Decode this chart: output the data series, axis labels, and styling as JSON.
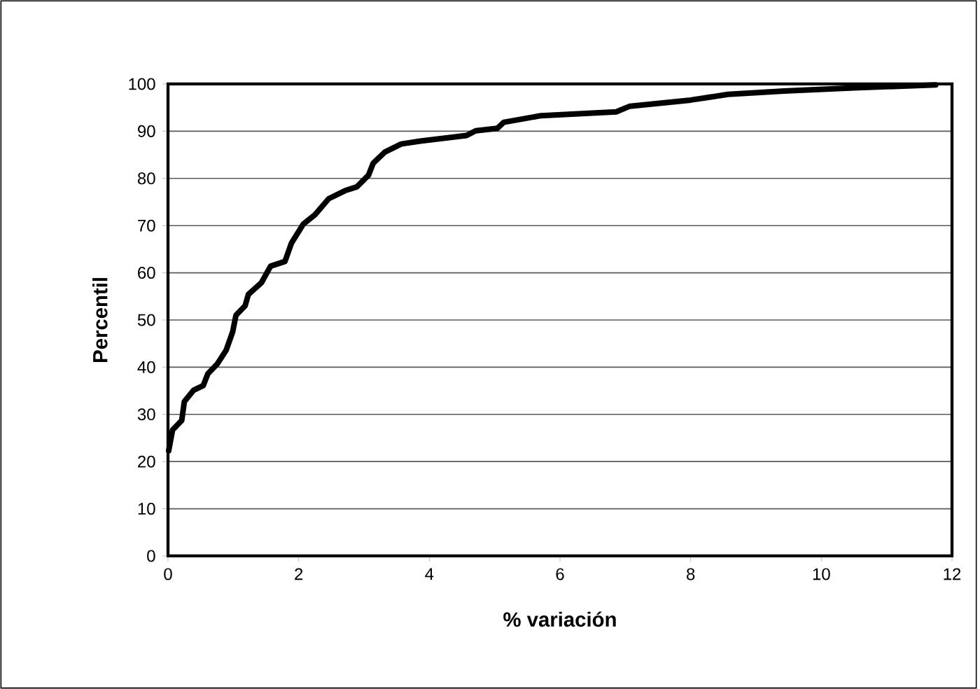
{
  "chart_data": {
    "type": "line",
    "xlabel": "% variación",
    "ylabel": "Percentil",
    "x": [
      0.01,
      0.07,
      0.21,
      0.25,
      0.39,
      0.54,
      0.61,
      0.75,
      0.89,
      0.99,
      1.04,
      1.18,
      1.23,
      1.43,
      1.57,
      1.79,
      1.89,
      2.07,
      2.25,
      2.46,
      2.71,
      2.89,
      3.07,
      3.14,
      3.32,
      3.57,
      3.86,
      4.57,
      4.71,
      5.04,
      5.14,
      5.71,
      6.86,
      7.07,
      8.0,
      8.57,
      9.43,
      10.5,
      11.75
    ],
    "series": [
      {
        "color": "#000000",
        "values": [
          22.3,
          26.7,
          28.7,
          32.7,
          35.1,
          36.1,
          38.6,
          40.6,
          43.6,
          47.5,
          51,
          53,
          55.4,
          57.9,
          61.4,
          62.4,
          66.3,
          70.3,
          72.3,
          75.7,
          77.4,
          78.2,
          80.7,
          83.2,
          85.6,
          87.3,
          87.9,
          89.1,
          90.1,
          90.6,
          91.9,
          93.3,
          94.1,
          95.3,
          96.6,
          97.8,
          98.5,
          99.2,
          99.8
        ]
      }
    ],
    "xlim": [
      0,
      12
    ],
    "ylim": [
      0,
      100
    ],
    "xticks": [
      0,
      2,
      4,
      6,
      8,
      10,
      12
    ],
    "yticks": [
      0,
      10,
      20,
      30,
      40,
      50,
      60,
      70,
      80,
      90,
      100
    ],
    "grid": "y",
    "legend": false,
    "marker": "none",
    "line_style": "solid"
  }
}
